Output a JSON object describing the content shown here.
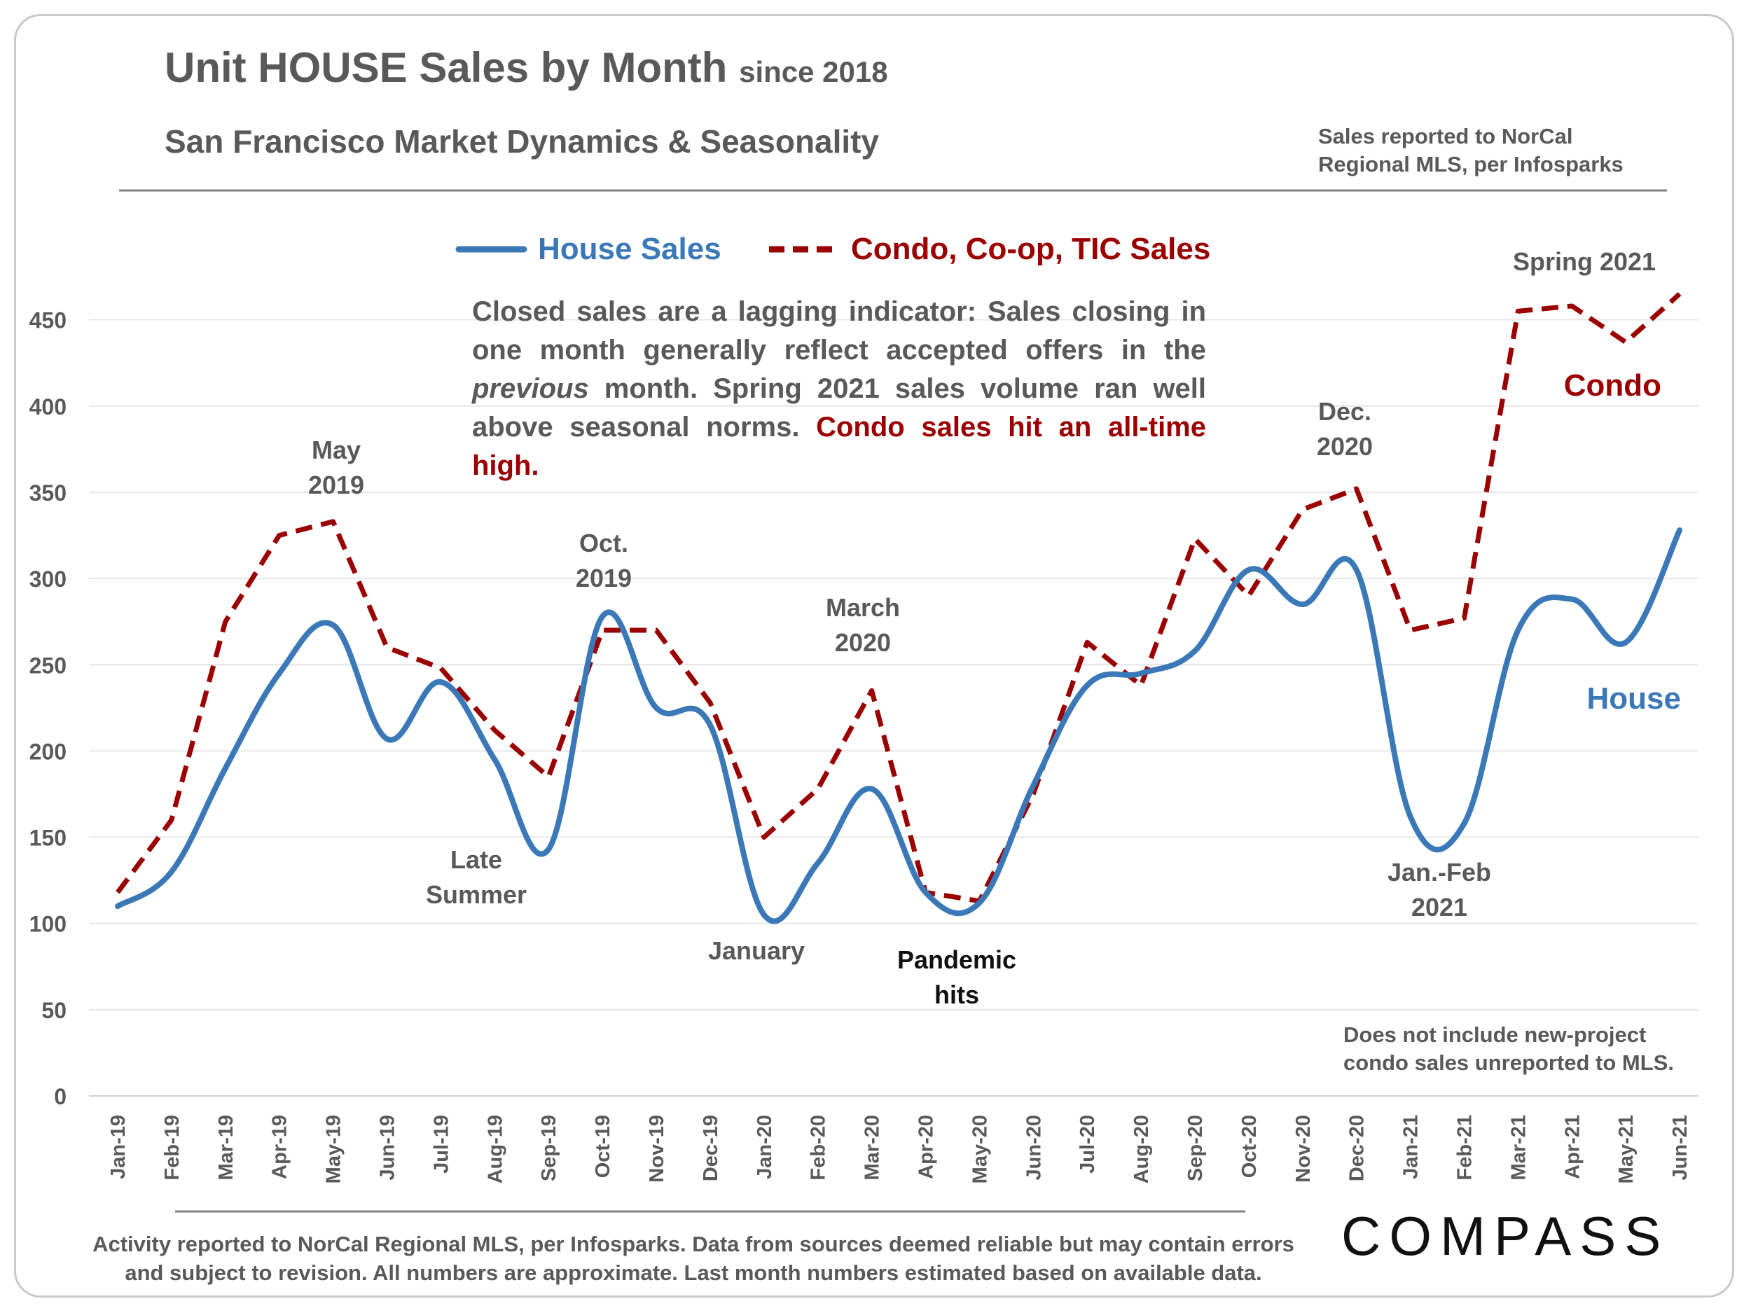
{
  "header": {
    "title": "Unit HOUSE Sales by Month",
    "title_suffix": "since 2018",
    "subtitle": "San Francisco Market Dynamics & Seasonality",
    "source_line1": "Sales reported to NorCal",
    "source_line2": "Regional MLS, per Infosparks"
  },
  "legend": {
    "house": "House Sales",
    "condo": "Condo, Co-op, TIC Sales"
  },
  "note": {
    "part1": "Closed sales are a lagging indicator: Sales closing in one month generally reflect accepted offers in the ",
    "italic": "previous",
    "part2": " month. Spring 2021 sales volume ran well above seasonal norms. ",
    "highlight": "Condo sales hit an all-time high."
  },
  "annotations": {
    "may2019_line1": "May",
    "may2019_line2": "2019",
    "oct2019_line1": "Oct.",
    "oct2019_line2": "2019",
    "march2020_line1": "March",
    "march2020_line2": "2020",
    "late_summer_line1": "Late",
    "late_summer_line2": "Summer",
    "january": "January",
    "pandemic_line1": "Pandemic",
    "pandemic_line2": "hits",
    "dec2020_line1": "Dec.",
    "dec2020_line2": "2020",
    "janfeb_line1": "Jan.-Feb",
    "janfeb_line2": "2021",
    "spring2021": "Spring 2021",
    "condo_label": "Condo",
    "house_label": "House",
    "disclaimer_line1": "Does not include new-project",
    "disclaimer_line2": "condo sales unreported to MLS."
  },
  "footer": {
    "line1": "Activity reported to NorCal Regional MLS, per Infosparks. Data from sources deemed reliable but may contain errors",
    "line2": "and subject to revision. All numbers are approximate. Last month numbers estimated based on available data.",
    "logo": "COMPASS"
  },
  "colors": {
    "house": "#3a78b8",
    "condo": "#9b0000",
    "text": "#595959"
  },
  "chart_data": {
    "type": "line",
    "categories": [
      "Jan-19",
      "Feb-19",
      "Mar-19",
      "Apr-19",
      "May-19",
      "Jun-19",
      "Jul-19",
      "Aug-19",
      "Sep-19",
      "Oct-19",
      "Nov-19",
      "Dec-19",
      "Jan-20",
      "Feb-20",
      "Mar-20",
      "Apr-20",
      "May-20",
      "Jun-20",
      "Jul-20",
      "Aug-20",
      "Sep-20",
      "Oct-20",
      "Nov-20",
      "Dec-20",
      "Jan-21",
      "Feb-21",
      "Mar-21",
      "Apr-21",
      "May-21",
      "Jun-21"
    ],
    "series": [
      {
        "name": "House Sales",
        "style": "solid",
        "smooth": true,
        "values": [
          110,
          130,
          190,
          245,
          273,
          207,
          240,
          195,
          143,
          278,
          225,
          215,
          105,
          135,
          178,
          118,
          112,
          180,
          238,
          245,
          258,
          305,
          285,
          305,
          162,
          158,
          270,
          288,
          263,
          328
        ]
      },
      {
        "name": "Condo, Co-op, TIC Sales",
        "style": "dashed",
        "smooth": false,
        "values": [
          118,
          160,
          275,
          325,
          333,
          260,
          248,
          212,
          185,
          270,
          270,
          228,
          150,
          178,
          235,
          118,
          113,
          175,
          263,
          238,
          323,
          290,
          340,
          352,
          270,
          277,
          455,
          458,
          437,
          465
        ]
      }
    ],
    "yticks": [
      0,
      50,
      100,
      150,
      200,
      250,
      300,
      350,
      400,
      450
    ],
    "ylim": [
      0,
      470
    ],
    "grid": true
  }
}
